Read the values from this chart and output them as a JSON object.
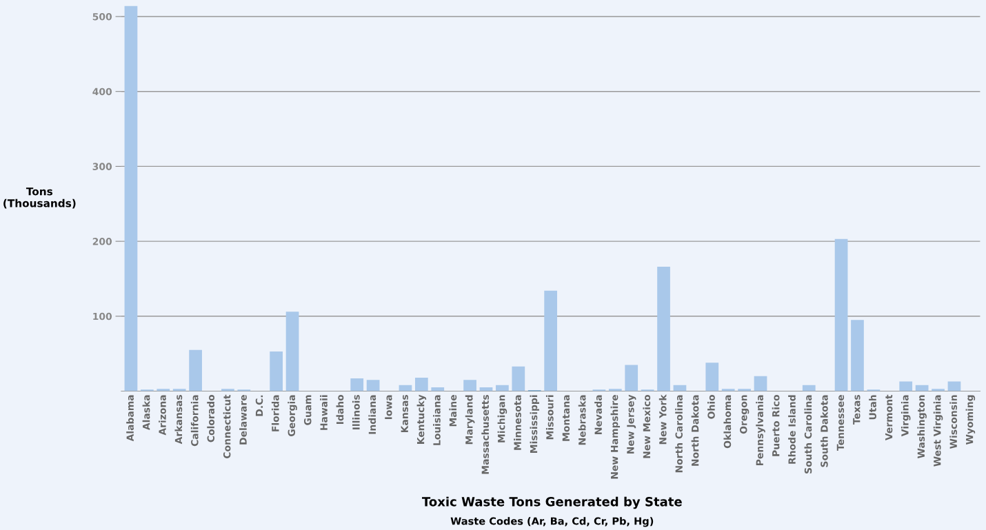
{
  "chart_data": {
    "type": "bar",
    "title": "Toxic Waste Tons Generated by State",
    "subtitle": "Waste Codes (Ar, Ba, Cd, Cr, Pb, Hg)",
    "ylabel": "Tons\n(Thousands)",
    "categories": [
      "Alabama",
      "Alaska",
      "Arizona",
      "Arkansas",
      "California",
      "Colorado",
      "Connecticut",
      "Delaware",
      "D.C.",
      "Florida",
      "Georgia",
      "Guam",
      "Hawaii",
      "Idaho",
      "Illinois",
      "Indiana",
      "Iowa",
      "Kansas",
      "Kentucky",
      "Louisiana",
      "Maine",
      "Maryland",
      "Massachusetts",
      "Michigan",
      "Minnesota",
      "Mississippi",
      "Missouri",
      "Montana",
      "Nebraska",
      "Nevada",
      "New Hampshire",
      "New Jersey",
      "New Mexico",
      "New York",
      "North Carolina",
      "North Dakota",
      "Ohio",
      "Oklahoma",
      "Oregon",
      "Pennsylvania",
      "Puerto Rico",
      "Rhode Island",
      "South Carolina",
      "South Dakota",
      "Tennessee",
      "Texas",
      "Utah",
      "Vermont",
      "Virginia",
      "Washington",
      "West Virginia",
      "Wisconsin",
      "Wyoming"
    ],
    "values": [
      514,
      2,
      3,
      3,
      55,
      0,
      3,
      2,
      0,
      53,
      106,
      0,
      0,
      0,
      17,
      15,
      0,
      8,
      18,
      5,
      0,
      15,
      5,
      8,
      33,
      1,
      134,
      0,
      0,
      2,
      3,
      35,
      2,
      166,
      8,
      0,
      38,
      3,
      3,
      20,
      0,
      0,
      8,
      0,
      203,
      95,
      2,
      0,
      13,
      8,
      3,
      13,
      0
    ],
    "colors": [
      "#a9c8ea",
      "#a9c8ea",
      "#a9c8ea",
      "#a9c8ea",
      "#a9c8ea",
      "#a9c8ea",
      "#a9c8ea",
      "#a9c8ea",
      "#a9c8ea",
      "#a9c8ea",
      "#a9c8ea",
      "#a9c8ea",
      "#a9c8ea",
      "#a9c8ea",
      "#a9c8ea",
      "#a9c8ea",
      "#a9c8ea",
      "#a9c8ea",
      "#a9c8ea",
      "#a9c8ea",
      "#a9c8ea",
      "#a9c8ea",
      "#a9c8ea",
      "#a9c8ea",
      "#a9c8ea",
      "#2b7bb5",
      "#a9c8ea",
      "#a9c8ea",
      "#a9c8ea",
      "#a9c8ea",
      "#a9c8ea",
      "#a9c8ea",
      "#a9c8ea",
      "#a9c8ea",
      "#a9c8ea",
      "#a9c8ea",
      "#a9c8ea",
      "#a9c8ea",
      "#a9c8ea",
      "#a9c8ea",
      "#a9c8ea",
      "#a9c8ea",
      "#a9c8ea",
      "#a9c8ea",
      "#a9c8ea",
      "#a9c8ea",
      "#a9c8ea",
      "#a9c8ea",
      "#a9c8ea",
      "#a9c8ea",
      "#a9c8ea",
      "#a9c8ea",
      "#a9c8ea"
    ],
    "ylim": [
      0,
      515
    ],
    "yticks": [
      100,
      200,
      300,
      400,
      500
    ],
    "grid": "y",
    "legend": false
  }
}
